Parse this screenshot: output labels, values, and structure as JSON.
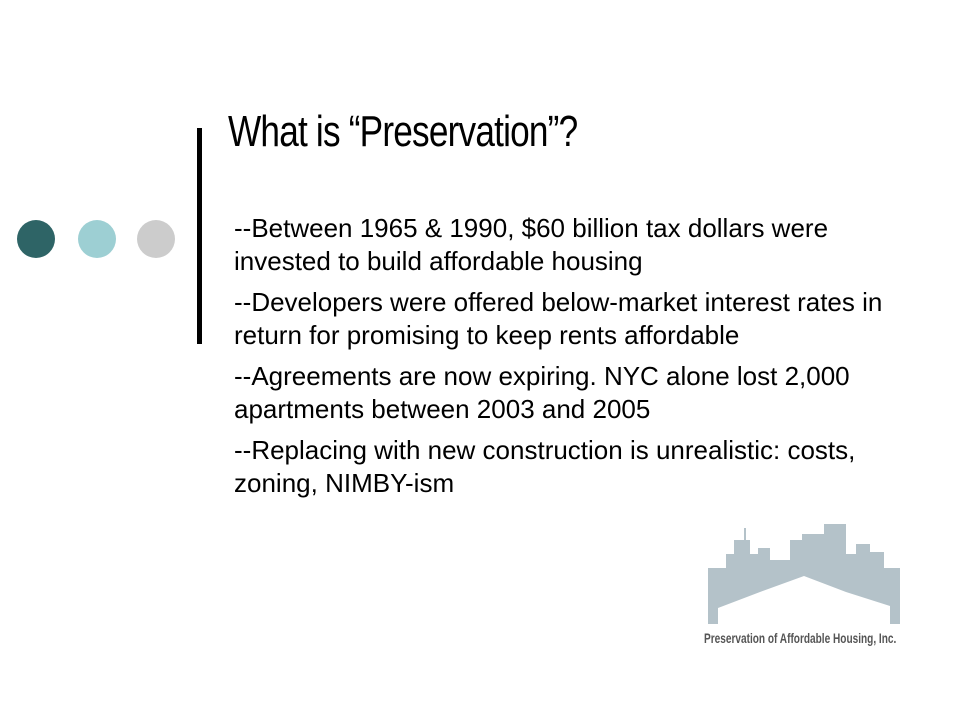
{
  "slide": {
    "title": "What is “Preservation”?",
    "bullets": [
      "--Between 1965 & 1990, $60 billion tax dollars were invested to build affordable housing",
      "--Developers were offered below-market interest rates in return for promising to keep rents affordable",
      "--Agreements are now expiring.  NYC alone lost 2,000 apartments between 2003 and 2005",
      "--Replacing with new construction is unrealistic: costs, zoning, NIMBY-ism"
    ]
  },
  "decoration": {
    "dot_colors": [
      "#2e6466",
      "#9dcfd3",
      "#cccccc"
    ],
    "bar_color": "#000000"
  },
  "logo": {
    "caption": "Preservation of Affordable Housing, Inc.",
    "icon": "city-skyline-icon",
    "color": "#b4c2c9"
  }
}
